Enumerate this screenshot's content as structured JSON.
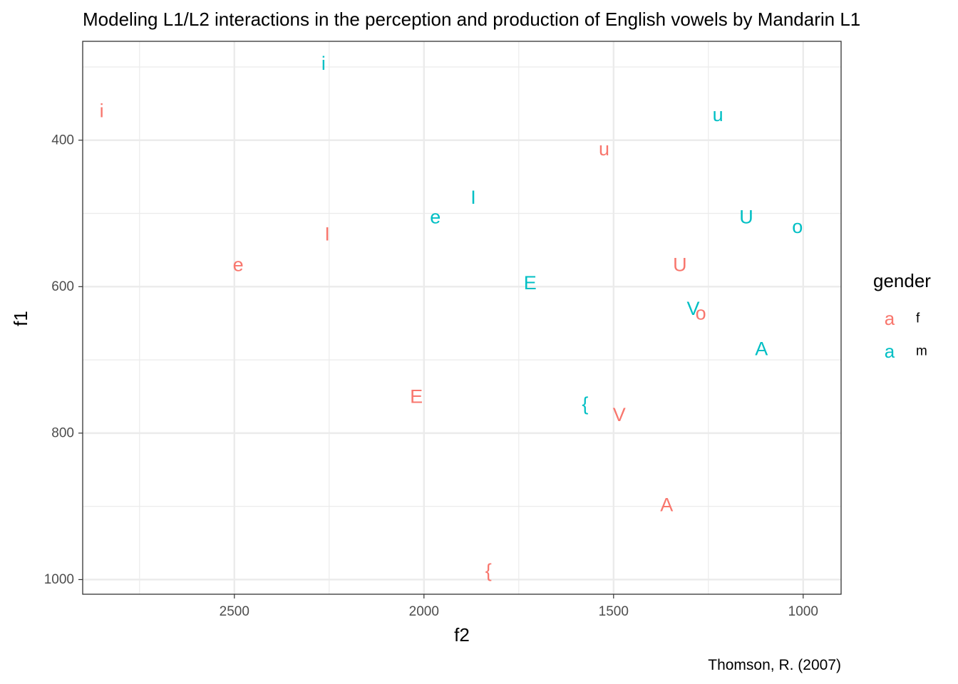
{
  "chart_data": {
    "type": "scatter",
    "title": "Modeling L1/L2 interactions in the perception and production of English vowels by Mandarin L1",
    "caption": "Thomson, R. (2007)",
    "xlabel": "f2",
    "ylabel": "f1",
    "x_reversed": true,
    "y_reversed": true,
    "xlim": [
      900,
      2900
    ],
    "ylim": [
      265,
      1020
    ],
    "x_ticks": [
      1000,
      1500,
      2000,
      2500
    ],
    "y_ticks": [
      400,
      600,
      800,
      1000
    ],
    "grid": true,
    "legend": {
      "title": "gender",
      "placement": "right",
      "key_glyph": "a",
      "entries": [
        {
          "name": "f",
          "color": "#F8766D"
        },
        {
          "name": "m",
          "color": "#00BFC4"
        }
      ]
    },
    "series": [
      {
        "name": "f",
        "color": "#F8766D",
        "points": [
          {
            "label": "i",
            "x": 2850,
            "y": 360
          },
          {
            "label": "e",
            "x": 2490,
            "y": 570
          },
          {
            "label": "I",
            "x": 2255,
            "y": 528
          },
          {
            "label": "E",
            "x": 2020,
            "y": 750
          },
          {
            "label": "{",
            "x": 1830,
            "y": 988
          },
          {
            "label": "u",
            "x": 1525,
            "y": 412
          },
          {
            "label": "V",
            "x": 1485,
            "y": 775
          },
          {
            "label": "A",
            "x": 1360,
            "y": 898
          },
          {
            "label": "U",
            "x": 1325,
            "y": 570
          },
          {
            "label": "o",
            "x": 1270,
            "y": 636
          }
        ]
      },
      {
        "name": "m",
        "color": "#00BFC4",
        "points": [
          {
            "label": "i",
            "x": 2265,
            "y": 295
          },
          {
            "label": "e",
            "x": 1970,
            "y": 505
          },
          {
            "label": "I",
            "x": 1870,
            "y": 478
          },
          {
            "label": "E",
            "x": 1720,
            "y": 595
          },
          {
            "label": "{",
            "x": 1575,
            "y": 760
          },
          {
            "label": "u",
            "x": 1225,
            "y": 365
          },
          {
            "label": "V",
            "x": 1290,
            "y": 630
          },
          {
            "label": "A",
            "x": 1110,
            "y": 685
          },
          {
            "label": "U",
            "x": 1150,
            "y": 505
          },
          {
            "label": "o",
            "x": 1015,
            "y": 518
          }
        ]
      }
    ]
  }
}
